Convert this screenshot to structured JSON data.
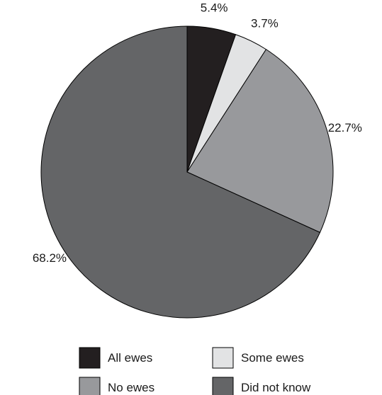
{
  "chart_data": {
    "type": "pie",
    "title": "",
    "start_angle_deg": 0,
    "direction": "clockwise",
    "slices": [
      {
        "label": "All ewes",
        "value": 5.4,
        "display": "5.4%",
        "color": "#231f20"
      },
      {
        "label": "Some ewes",
        "value": 3.7,
        "display": "3.7%",
        "color": "#e2e3e4"
      },
      {
        "label": "No ewes",
        "value": 22.7,
        "display": "22.7%",
        "color": "#98999c"
      },
      {
        "label": "Did not know",
        "value": 68.2,
        "display": "68.2%",
        "color": "#646567"
      }
    ],
    "legend": {
      "placement": "bottom",
      "columns": 2,
      "items": [
        "All ewes",
        "Some ewes",
        "No ewes",
        "Did not know"
      ]
    }
  }
}
